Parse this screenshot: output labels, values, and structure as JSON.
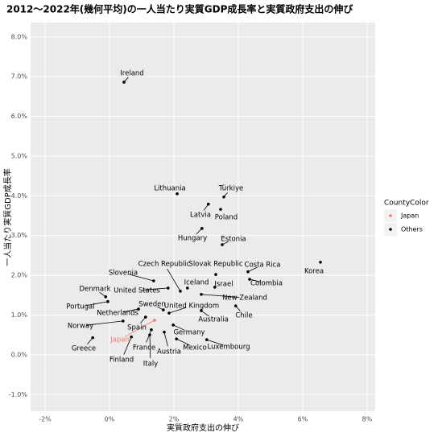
{
  "chart_data": {
    "type": "scatter",
    "title": "2012～2022年(幾何平均)の一人当たり実質GDP成長率と実質政府支出の伸び",
    "x_label": "実質政府支出の伸び",
    "y_label": "一人当たり実質GDP成長率",
    "legend_title": "CountyColor",
    "legend_position": "right",
    "grid": true,
    "xlim": [
      -2.45,
      8.25
    ],
    "ylim": [
      -1.42,
      8.36
    ],
    "xticks": [
      {
        "value": -2,
        "label": "-2%"
      },
      {
        "value": 0,
        "label": "0%"
      },
      {
        "value": 2,
        "label": "2%"
      },
      {
        "value": 4,
        "label": "4%"
      },
      {
        "value": 6,
        "label": "6%"
      },
      {
        "value": 8,
        "label": "8%"
      }
    ],
    "yticks": [
      {
        "value": -1,
        "label": "-1.0%"
      },
      {
        "value": 0,
        "label": "0.0%"
      },
      {
        "value": 1,
        "label": "1.0%"
      },
      {
        "value": 2,
        "label": "2.0%"
      },
      {
        "value": 3,
        "label": "3.0%"
      },
      {
        "value": 4,
        "label": "4.0%"
      },
      {
        "value": 5,
        "label": "5.0%"
      },
      {
        "value": 6,
        "label": "6.0%"
      },
      {
        "value": 7,
        "label": "7.0%"
      },
      {
        "value": 8,
        "label": "8.0%"
      }
    ],
    "series": [
      {
        "name": "Japan",
        "color": "#f8766d",
        "labels": [
          "Japan"
        ],
        "x": [
          1.4
        ],
        "y": [
          0.87
        ]
      },
      {
        "name": "Others",
        "color": "#000000",
        "labels": [
          "Ireland",
          "Lithuania",
          "Türkiye",
          "Latvia",
          "Poland",
          "Hungary",
          "Estonia",
          "Korea",
          "Costa Rica",
          "Czech Republic",
          "Slovak Republic",
          "Israel",
          "Colombia",
          "Slovenia",
          "United States",
          "Iceland",
          "Denmark",
          "New Zealand",
          "Portugal",
          "Chile",
          "Sweden",
          "United Kingdom",
          "Netherlands",
          "Australia",
          "Norway",
          "Spain",
          "Germany",
          "Finland",
          "Greece",
          "France",
          "Mexico",
          "Luxembourg",
          "Austria",
          "Italy"
        ],
        "x": [
          0.45,
          2.1,
          3.55,
          3.07,
          3.45,
          2.87,
          3.5,
          6.55,
          4.3,
          2.2,
          3.3,
          3.27,
          4.35,
          1.37,
          1.82,
          2.42,
          -0.12,
          2.85,
          -0.05,
          3.92,
          1.67,
          1.85,
          0.9,
          2.85,
          0.42,
          1.12,
          1.98,
          0.68,
          -0.52,
          1.3,
          2.08,
          3.02,
          1.7,
          1.25
        ],
        "y": [
          6.86,
          4.05,
          3.97,
          3.79,
          3.66,
          3.18,
          2.77,
          2.33,
          2.09,
          1.6,
          2.02,
          1.7,
          1.9,
          1.86,
          1.68,
          1.68,
          1.46,
          1.52,
          1.34,
          1.23,
          1.13,
          1.05,
          1.15,
          1.11,
          0.85,
          0.95,
          0.75,
          0.45,
          0.43,
          0.63,
          0.4,
          0.38,
          0.57,
          0.5
        ]
      }
    ]
  }
}
